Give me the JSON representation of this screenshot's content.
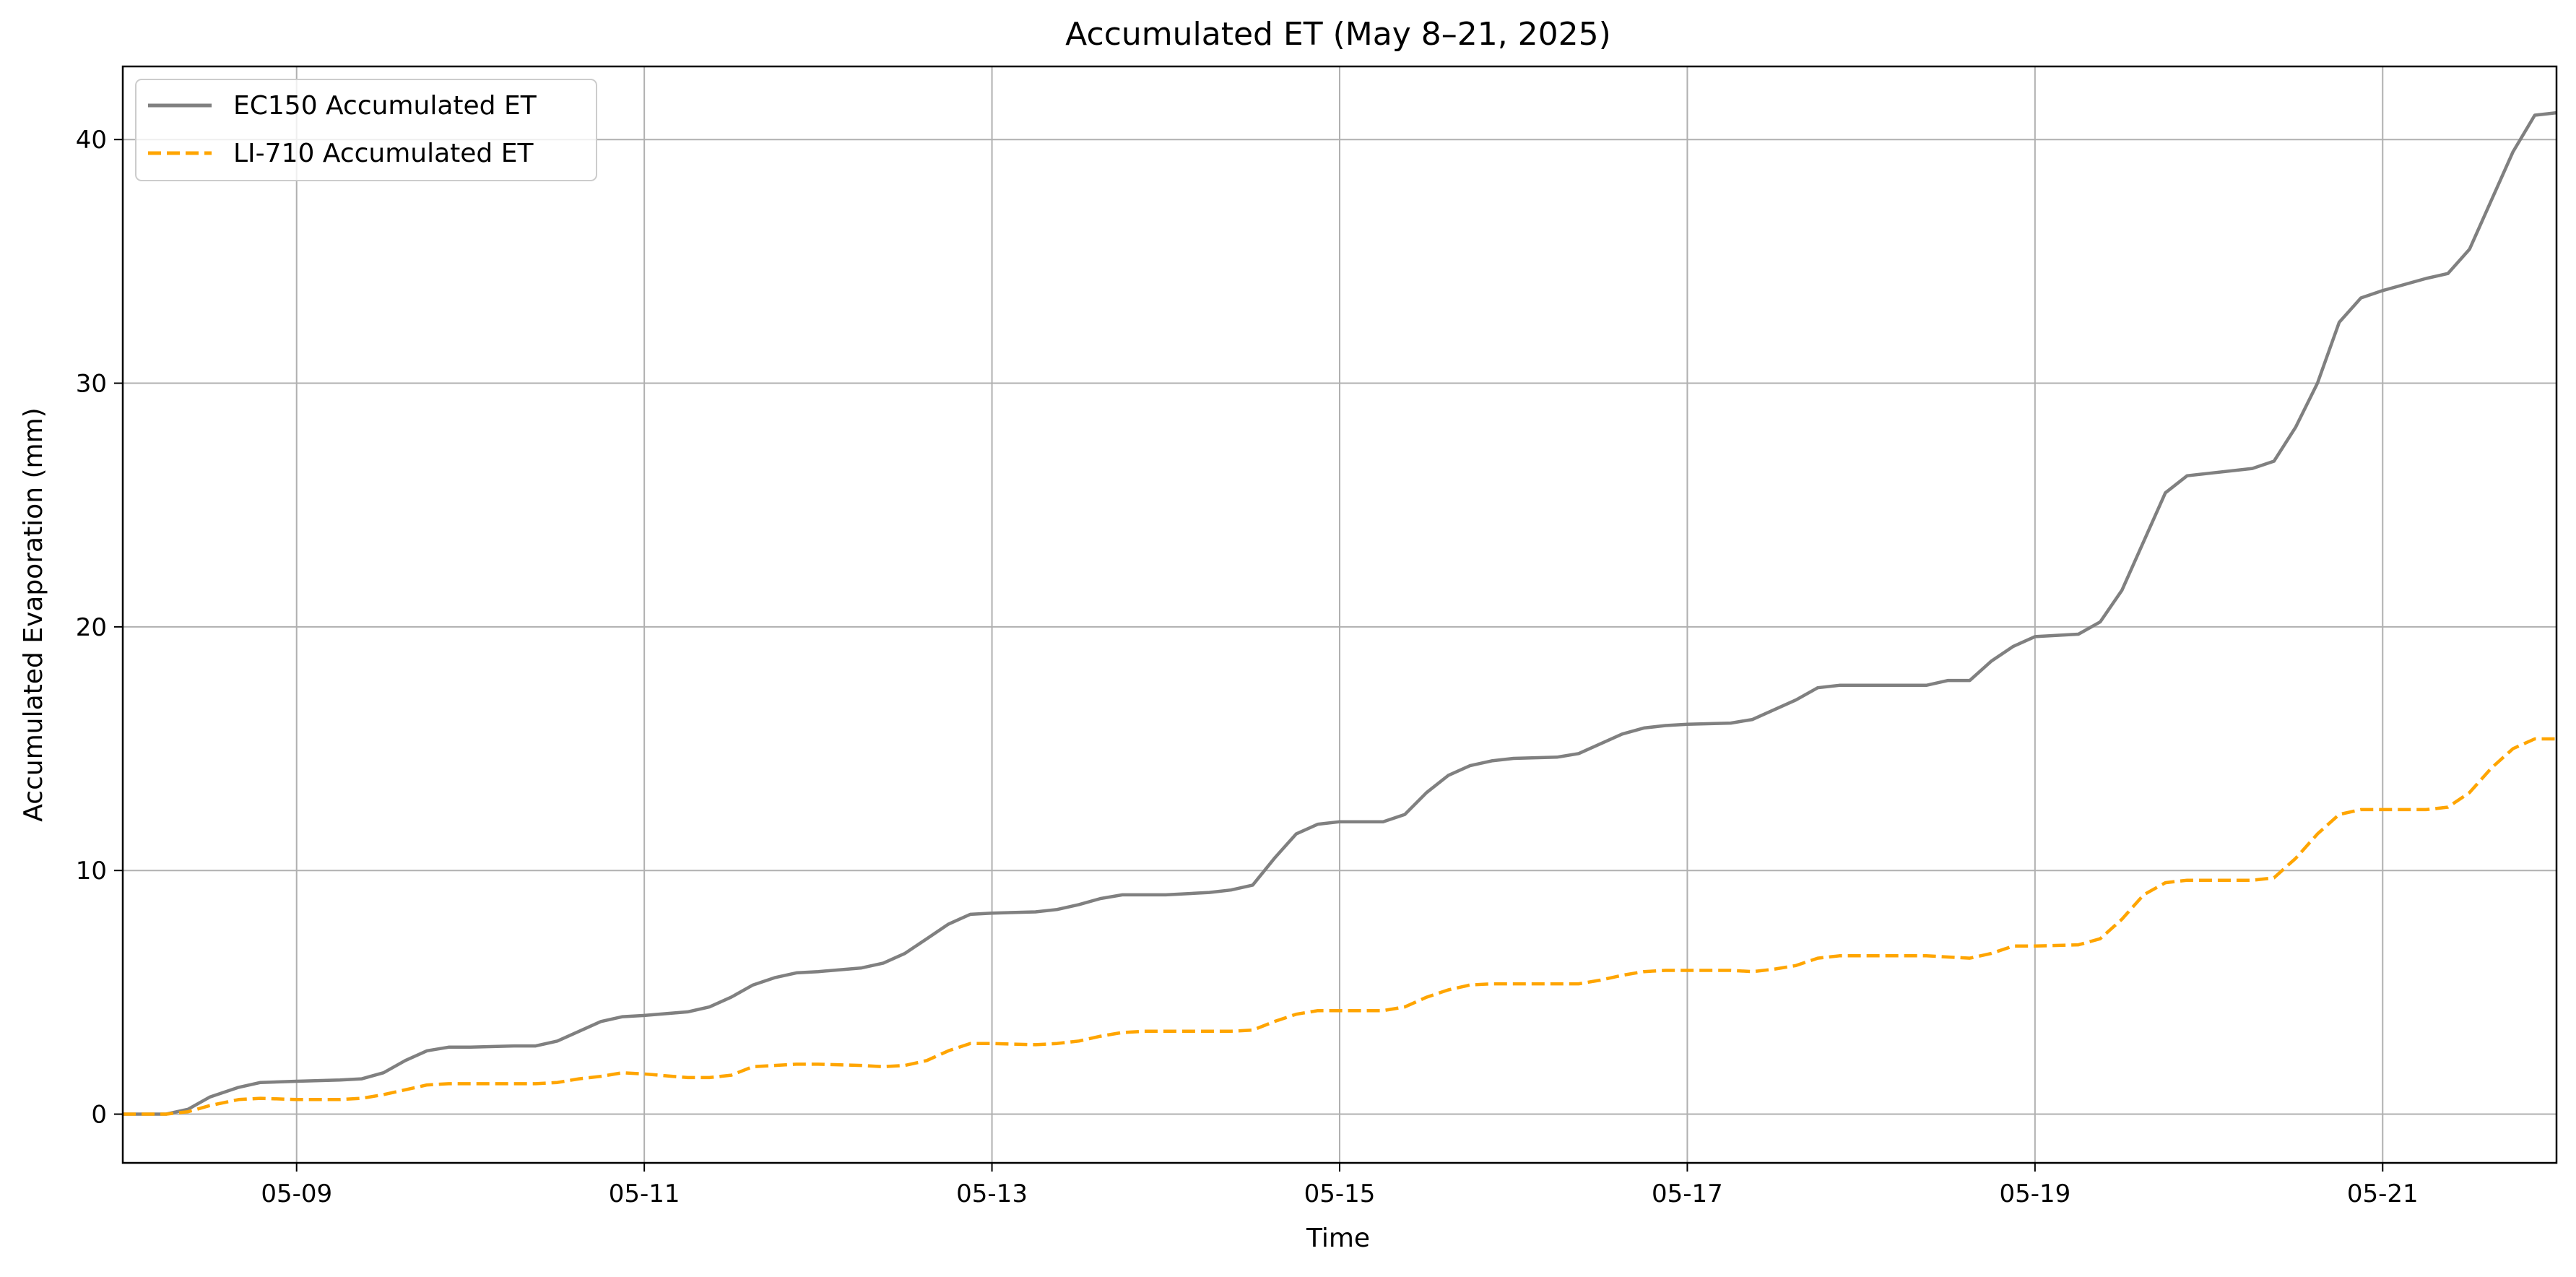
{
  "chart_data": {
    "type": "line",
    "title": "Accumulated ET (May 8–21, 2025)",
    "xlabel": "Time",
    "ylabel": "Accumulated Evaporation (mm)",
    "xlim": [
      "2025-05-08T00:00",
      "2025-05-22T00:00"
    ],
    "ylim": [
      -2,
      43
    ],
    "x_ticks": [
      {
        "value": "2025-05-09",
        "label": "05-09"
      },
      {
        "value": "2025-05-11",
        "label": "05-11"
      },
      {
        "value": "2025-05-13",
        "label": "05-13"
      },
      {
        "value": "2025-05-15",
        "label": "05-15"
      },
      {
        "value": "2025-05-17",
        "label": "05-17"
      },
      {
        "value": "2025-05-19",
        "label": "05-19"
      },
      {
        "value": "2025-05-21",
        "label": "05-21"
      }
    ],
    "y_ticks": [
      {
        "value": 0,
        "label": "0"
      },
      {
        "value": 10,
        "label": "10"
      },
      {
        "value": 20,
        "label": "20"
      },
      {
        "value": 30,
        "label": "30"
      },
      {
        "value": 40,
        "label": "40"
      }
    ],
    "grid": true,
    "legend_position": "top-left",
    "series": [
      {
        "name": "EC150 Accumulated ET",
        "color": "#808080",
        "line_style": "solid",
        "points": [
          [
            "2025-05-08T00:00",
            0.0
          ],
          [
            "2025-05-08T06:00",
            0.0
          ],
          [
            "2025-05-08T09:00",
            0.2
          ],
          [
            "2025-05-08T12:00",
            0.7
          ],
          [
            "2025-05-08T16:00",
            1.1
          ],
          [
            "2025-05-08T19:00",
            1.3
          ],
          [
            "2025-05-09T00:00",
            1.35
          ],
          [
            "2025-05-09T06:00",
            1.4
          ],
          [
            "2025-05-09T09:00",
            1.45
          ],
          [
            "2025-05-09T12:00",
            1.7
          ],
          [
            "2025-05-09T15:00",
            2.2
          ],
          [
            "2025-05-09T18:00",
            2.6
          ],
          [
            "2025-05-09T21:00",
            2.75
          ],
          [
            "2025-05-10T00:00",
            2.75
          ],
          [
            "2025-05-10T06:00",
            2.8
          ],
          [
            "2025-05-10T09:00",
            2.8
          ],
          [
            "2025-05-10T12:00",
            3.0
          ],
          [
            "2025-05-10T15:00",
            3.4
          ],
          [
            "2025-05-10T18:00",
            3.8
          ],
          [
            "2025-05-10T21:00",
            4.0
          ],
          [
            "2025-05-11T00:00",
            4.05
          ],
          [
            "2025-05-11T06:00",
            4.2
          ],
          [
            "2025-05-11T09:00",
            4.4
          ],
          [
            "2025-05-11T12:00",
            4.8
          ],
          [
            "2025-05-11T15:00",
            5.3
          ],
          [
            "2025-05-11T18:00",
            5.6
          ],
          [
            "2025-05-11T21:00",
            5.8
          ],
          [
            "2025-05-12T00:00",
            5.85
          ],
          [
            "2025-05-12T06:00",
            6.0
          ],
          [
            "2025-05-12T09:00",
            6.2
          ],
          [
            "2025-05-12T12:00",
            6.6
          ],
          [
            "2025-05-12T15:00",
            7.2
          ],
          [
            "2025-05-12T18:00",
            7.8
          ],
          [
            "2025-05-12T21:00",
            8.2
          ],
          [
            "2025-05-13T00:00",
            8.25
          ],
          [
            "2025-05-13T06:00",
            8.3
          ],
          [
            "2025-05-13T09:00",
            8.4
          ],
          [
            "2025-05-13T12:00",
            8.6
          ],
          [
            "2025-05-13T15:00",
            8.85
          ],
          [
            "2025-05-13T18:00",
            9.0
          ],
          [
            "2025-05-13T21:00",
            9.0
          ],
          [
            "2025-05-14T00:00",
            9.0
          ],
          [
            "2025-05-14T06:00",
            9.1
          ],
          [
            "2025-05-14T09:00",
            9.2
          ],
          [
            "2025-05-14T12:00",
            9.4
          ],
          [
            "2025-05-14T15:00",
            10.5
          ],
          [
            "2025-05-14T18:00",
            11.5
          ],
          [
            "2025-05-14T21:00",
            11.9
          ],
          [
            "2025-05-15T00:00",
            12.0
          ],
          [
            "2025-05-15T06:00",
            12.0
          ],
          [
            "2025-05-15T09:00",
            12.3
          ],
          [
            "2025-05-15T12:00",
            13.2
          ],
          [
            "2025-05-15T15:00",
            13.9
          ],
          [
            "2025-05-15T18:00",
            14.3
          ],
          [
            "2025-05-15T21:00",
            14.5
          ],
          [
            "2025-05-16T00:00",
            14.6
          ],
          [
            "2025-05-16T06:00",
            14.65
          ],
          [
            "2025-05-16T09:00",
            14.8
          ],
          [
            "2025-05-16T12:00",
            15.2
          ],
          [
            "2025-05-16T15:00",
            15.6
          ],
          [
            "2025-05-16T18:00",
            15.85
          ],
          [
            "2025-05-16T21:00",
            15.95
          ],
          [
            "2025-05-17T00:00",
            16.0
          ],
          [
            "2025-05-17T06:00",
            16.05
          ],
          [
            "2025-05-17T09:00",
            16.2
          ],
          [
            "2025-05-17T12:00",
            16.6
          ],
          [
            "2025-05-17T15:00",
            17.0
          ],
          [
            "2025-05-17T18:00",
            17.5
          ],
          [
            "2025-05-17T21:00",
            17.6
          ],
          [
            "2025-05-18T00:00",
            17.6
          ],
          [
            "2025-05-18T06:00",
            17.6
          ],
          [
            "2025-05-18T09:00",
            17.6
          ],
          [
            "2025-05-18T12:00",
            17.8
          ],
          [
            "2025-05-18T15:00",
            17.8
          ],
          [
            "2025-05-18T18:00",
            18.6
          ],
          [
            "2025-05-18T21:00",
            19.2
          ],
          [
            "2025-05-19T00:00",
            19.6
          ],
          [
            "2025-05-19T06:00",
            19.7
          ],
          [
            "2025-05-19T09:00",
            20.2
          ],
          [
            "2025-05-19T12:00",
            21.5
          ],
          [
            "2025-05-19T15:00",
            23.5
          ],
          [
            "2025-05-19T18:00",
            25.5
          ],
          [
            "2025-05-19T21:00",
            26.2
          ],
          [
            "2025-05-20T00:00",
            26.3
          ],
          [
            "2025-05-20T06:00",
            26.5
          ],
          [
            "2025-05-20T09:00",
            26.8
          ],
          [
            "2025-05-20T12:00",
            28.2
          ],
          [
            "2025-05-20T15:00",
            30.0
          ],
          [
            "2025-05-20T18:00",
            32.5
          ],
          [
            "2025-05-20T21:00",
            33.5
          ],
          [
            "2025-05-21T00:00",
            33.8
          ],
          [
            "2025-05-21T06:00",
            34.3
          ],
          [
            "2025-05-21T09:00",
            34.5
          ],
          [
            "2025-05-21T12:00",
            35.5
          ],
          [
            "2025-05-21T15:00",
            37.5
          ],
          [
            "2025-05-21T18:00",
            39.5
          ],
          [
            "2025-05-21T21:00",
            41.0
          ],
          [
            "2025-05-22T00:00",
            41.1
          ]
        ]
      },
      {
        "name": "LI-710 Accumulated ET",
        "color": "#ffa500",
        "line_style": "dashed",
        "points": [
          [
            "2025-05-08T00:00",
            0.0
          ],
          [
            "2025-05-08T06:00",
            0.0
          ],
          [
            "2025-05-08T09:00",
            0.1
          ],
          [
            "2025-05-08T12:00",
            0.35
          ],
          [
            "2025-05-08T16:00",
            0.6
          ],
          [
            "2025-05-08T19:00",
            0.65
          ],
          [
            "2025-05-09T00:00",
            0.6
          ],
          [
            "2025-05-09T06:00",
            0.6
          ],
          [
            "2025-05-09T09:00",
            0.65
          ],
          [
            "2025-05-09T12:00",
            0.8
          ],
          [
            "2025-05-09T15:00",
            1.0
          ],
          [
            "2025-05-09T18:00",
            1.2
          ],
          [
            "2025-05-09T21:00",
            1.25
          ],
          [
            "2025-05-10T00:00",
            1.25
          ],
          [
            "2025-05-10T06:00",
            1.25
          ],
          [
            "2025-05-10T09:00",
            1.25
          ],
          [
            "2025-05-10T12:00",
            1.3
          ],
          [
            "2025-05-10T15:00",
            1.45
          ],
          [
            "2025-05-10T18:00",
            1.55
          ],
          [
            "2025-05-10T21:00",
            1.7
          ],
          [
            "2025-05-11T00:00",
            1.65
          ],
          [
            "2025-05-11T06:00",
            1.5
          ],
          [
            "2025-05-11T09:00",
            1.5
          ],
          [
            "2025-05-11T12:00",
            1.6
          ],
          [
            "2025-05-11T15:00",
            1.95
          ],
          [
            "2025-05-11T18:00",
            2.0
          ],
          [
            "2025-05-11T21:00",
            2.05
          ],
          [
            "2025-05-12T00:00",
            2.05
          ],
          [
            "2025-05-12T06:00",
            2.0
          ],
          [
            "2025-05-12T09:00",
            1.95
          ],
          [
            "2025-05-12T12:00",
            2.0
          ],
          [
            "2025-05-12T15:00",
            2.2
          ],
          [
            "2025-05-12T18:00",
            2.6
          ],
          [
            "2025-05-12T21:00",
            2.9
          ],
          [
            "2025-05-13T00:00",
            2.9
          ],
          [
            "2025-05-13T06:00",
            2.85
          ],
          [
            "2025-05-13T09:00",
            2.9
          ],
          [
            "2025-05-13T12:00",
            3.0
          ],
          [
            "2025-05-13T15:00",
            3.2
          ],
          [
            "2025-05-13T18:00",
            3.35
          ],
          [
            "2025-05-13T21:00",
            3.4
          ],
          [
            "2025-05-14T00:00",
            3.4
          ],
          [
            "2025-05-14T06:00",
            3.4
          ],
          [
            "2025-05-14T09:00",
            3.4
          ],
          [
            "2025-05-14T12:00",
            3.45
          ],
          [
            "2025-05-14T15:00",
            3.8
          ],
          [
            "2025-05-14T18:00",
            4.1
          ],
          [
            "2025-05-14T21:00",
            4.25
          ],
          [
            "2025-05-15T00:00",
            4.25
          ],
          [
            "2025-05-15T06:00",
            4.25
          ],
          [
            "2025-05-15T09:00",
            4.4
          ],
          [
            "2025-05-15T12:00",
            4.8
          ],
          [
            "2025-05-15T15:00",
            5.1
          ],
          [
            "2025-05-15T18:00",
            5.3
          ],
          [
            "2025-05-15T21:00",
            5.35
          ],
          [
            "2025-05-16T00:00",
            5.35
          ],
          [
            "2025-05-16T06:00",
            5.35
          ],
          [
            "2025-05-16T09:00",
            5.35
          ],
          [
            "2025-05-16T12:00",
            5.5
          ],
          [
            "2025-05-16T15:00",
            5.7
          ],
          [
            "2025-05-16T18:00",
            5.85
          ],
          [
            "2025-05-16T21:00",
            5.9
          ],
          [
            "2025-05-17T00:00",
            5.9
          ],
          [
            "2025-05-17T06:00",
            5.9
          ],
          [
            "2025-05-17T09:00",
            5.85
          ],
          [
            "2025-05-17T12:00",
            5.95
          ],
          [
            "2025-05-17T15:00",
            6.1
          ],
          [
            "2025-05-17T18:00",
            6.4
          ],
          [
            "2025-05-17T21:00",
            6.5
          ],
          [
            "2025-05-18T00:00",
            6.5
          ],
          [
            "2025-05-18T06:00",
            6.5
          ],
          [
            "2025-05-18T09:00",
            6.5
          ],
          [
            "2025-05-18T12:00",
            6.45
          ],
          [
            "2025-05-18T15:00",
            6.4
          ],
          [
            "2025-05-18T18:00",
            6.6
          ],
          [
            "2025-05-18T21:00",
            6.9
          ],
          [
            "2025-05-19T00:00",
            6.9
          ],
          [
            "2025-05-19T06:00",
            6.95
          ],
          [
            "2025-05-19T09:00",
            7.2
          ],
          [
            "2025-05-19T12:00",
            8.0
          ],
          [
            "2025-05-19T15:00",
            9.0
          ],
          [
            "2025-05-19T18:00",
            9.5
          ],
          [
            "2025-05-19T21:00",
            9.6
          ],
          [
            "2025-05-20T00:00",
            9.6
          ],
          [
            "2025-05-20T06:00",
            9.6
          ],
          [
            "2025-05-20T09:00",
            9.7
          ],
          [
            "2025-05-20T12:00",
            10.5
          ],
          [
            "2025-05-20T15:00",
            11.5
          ],
          [
            "2025-05-20T18:00",
            12.3
          ],
          [
            "2025-05-20T21:00",
            12.5
          ],
          [
            "2025-05-21T00:00",
            12.5
          ],
          [
            "2025-05-21T06:00",
            12.5
          ],
          [
            "2025-05-21T09:00",
            12.6
          ],
          [
            "2025-05-21T12:00",
            13.2
          ],
          [
            "2025-05-21T15:00",
            14.2
          ],
          [
            "2025-05-21T18:00",
            15.0
          ],
          [
            "2025-05-21T21:00",
            15.4
          ],
          [
            "2025-05-22T00:00",
            15.4
          ]
        ]
      }
    ]
  }
}
